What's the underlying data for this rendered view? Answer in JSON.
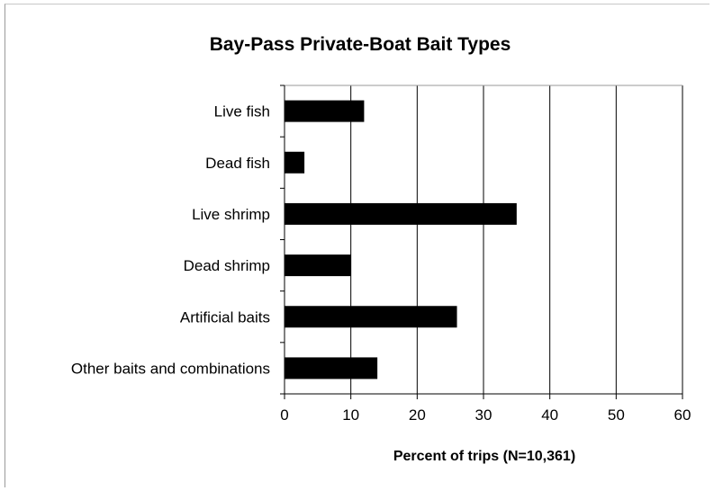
{
  "chart_data": {
    "type": "bar",
    "orientation": "horizontal",
    "title": "Bay-Pass Private-Boat Bait Types",
    "xlabel": "Percent of trips (N=10,361)",
    "ylabel": "",
    "categories": [
      "Live fish",
      "Dead fish",
      "Live shrimp",
      "Dead shrimp",
      "Artificial baits",
      "Other baits and combinations"
    ],
    "values": [
      12,
      3,
      35,
      10,
      26,
      14
    ],
    "xlim": [
      0,
      60
    ],
    "xticks": [
      "0",
      "10",
      "20",
      "30",
      "40",
      "50",
      "60"
    ],
    "bar_color": "#000000",
    "grid": true
  }
}
